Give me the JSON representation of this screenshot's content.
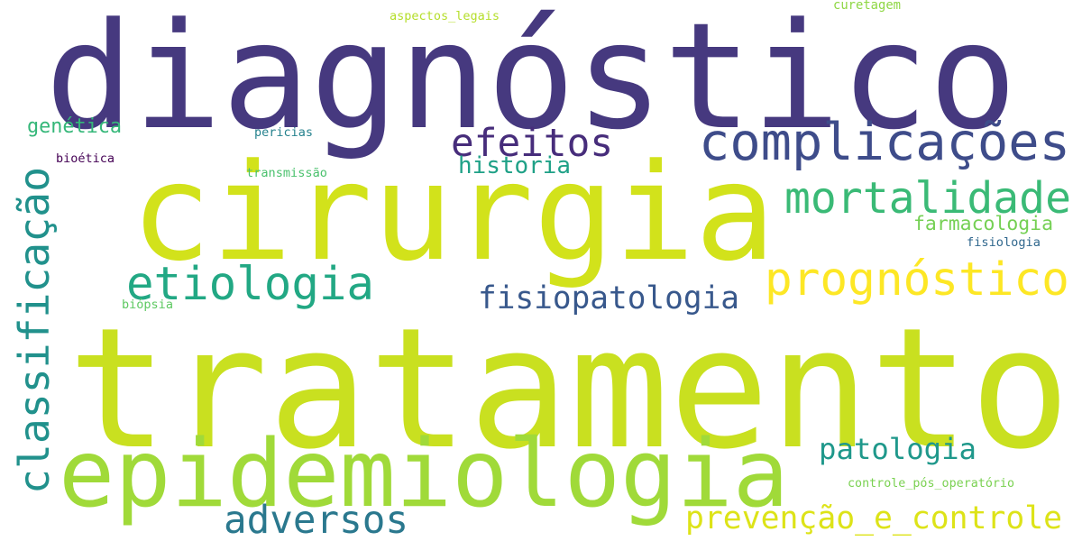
{
  "words": [
    {
      "text": "diagnóstico",
      "color": "#46397f"
    },
    {
      "text": "cirurgia",
      "color": "#d2e21b"
    },
    {
      "text": "tratamento",
      "color": "#c9e020"
    },
    {
      "text": "epidemiologia",
      "color": "#a0da39"
    },
    {
      "text": "classificação",
      "color": "#21918c"
    },
    {
      "text": "complicações",
      "color": "#3e4c8a"
    },
    {
      "text": "efeitos",
      "color": "#472d7b"
    },
    {
      "text": "mortalidade",
      "color": "#3aba76"
    },
    {
      "text": "etiologia",
      "color": "#22a884"
    },
    {
      "text": "prognóstico",
      "color": "#fde725"
    },
    {
      "text": "fisiopatologia",
      "color": "#38588c"
    },
    {
      "text": "patologia",
      "color": "#1f988b"
    },
    {
      "text": "adversos",
      "color": "#2a788e"
    },
    {
      "text": "prevenção_e_controle",
      "color": "#dde318"
    },
    {
      "text": "historia",
      "color": "#1fa187"
    },
    {
      "text": "farmacologia",
      "color": "#75d054"
    },
    {
      "text": "genética",
      "color": "#35b779"
    },
    {
      "text": "fisiologia",
      "color": "#31688e"
    },
    {
      "text": "pericias",
      "color": "#26828e"
    },
    {
      "text": "bioética",
      "color": "#440154"
    },
    {
      "text": "transmissão",
      "color": "#4ac16d"
    },
    {
      "text": "biópsia",
      "color": "#5ec962"
    },
    {
      "text": "aspectos_legais",
      "color": "#b5de2b"
    },
    {
      "text": "curetagem",
      "color": "#8fd744"
    },
    {
      "text": "controle_pós_operatório",
      "color": "#7ad151"
    }
  ]
}
